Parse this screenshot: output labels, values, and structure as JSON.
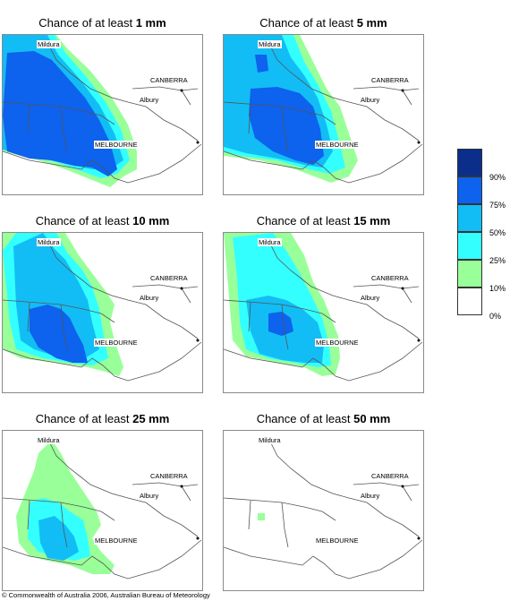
{
  "panels": [
    {
      "title_prefix": "Chance of at least",
      "threshold": "1 mm"
    },
    {
      "title_prefix": "Chance of at least",
      "threshold": "5 mm"
    },
    {
      "title_prefix": "Chance of at least",
      "threshold": "10 mm"
    },
    {
      "title_prefix": "Chance of at least",
      "threshold": "15 mm"
    },
    {
      "title_prefix": "Chance of at least",
      "threshold": "25 mm"
    },
    {
      "title_prefix": "Chance of at least",
      "threshold": "50 mm"
    }
  ],
  "cities": {
    "mildura": "Mildura",
    "canberra": "CANBERRA",
    "albury": "Albury",
    "melbourne": "MELBOURNE"
  },
  "legend": {
    "labels": [
      "90%",
      "75%",
      "50%",
      "25%",
      "10%",
      "0%"
    ],
    "colors": [
      "#0a2e8a",
      "#0d62ee",
      "#12bdf5",
      "#33ffff",
      "#99ff99",
      "#ffffff"
    ]
  },
  "footer": "© Commonwealth of Australia 2006, Australian Bureau of Meteorology"
}
